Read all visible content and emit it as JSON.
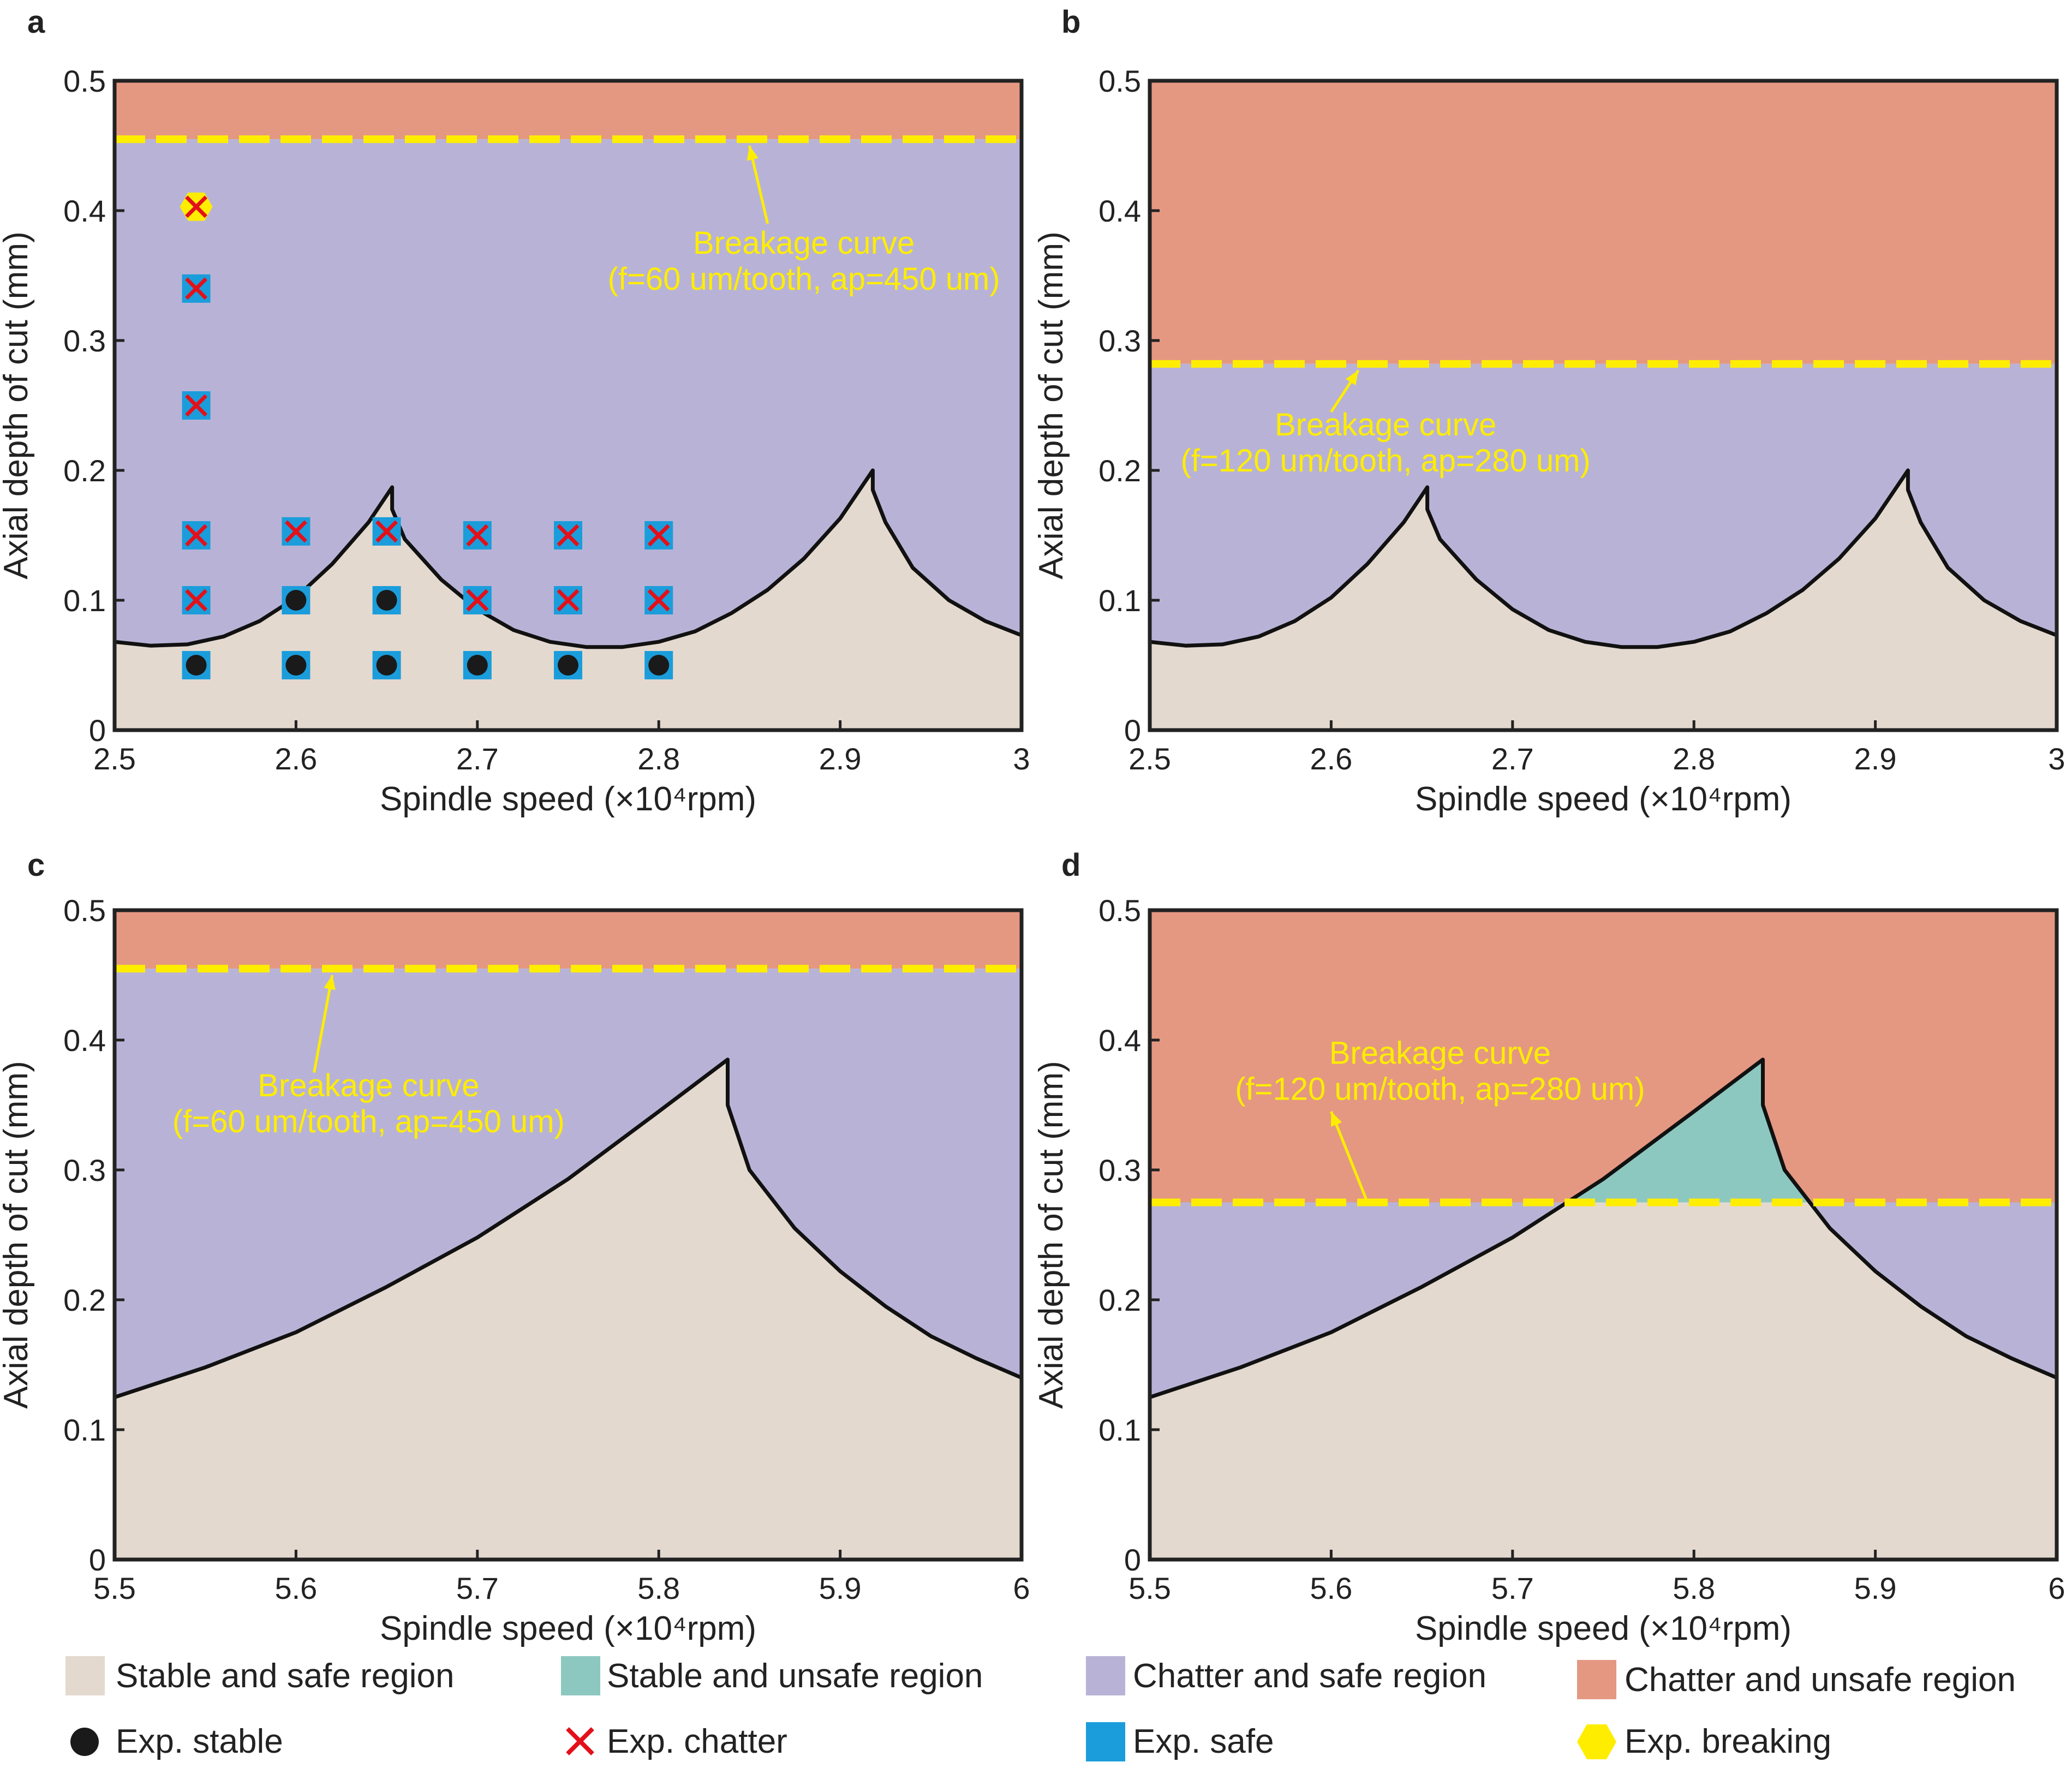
{
  "colors": {
    "stable_safe": "#E4D9CF",
    "stable_unsafe": "#8DC8C0",
    "chatter_safe": "#B8B3D6",
    "chatter_unsafe": "#E49882",
    "breakage": "#FFED00",
    "exp_safe": "#1B9DDB",
    "exp_chatter_x": "#E3101A",
    "exp_stable_dot": "#1a1a1a",
    "axis": "#222222"
  },
  "panels": [
    {
      "id": "a",
      "xlabel": "Spindle speed (×10⁴rpm)",
      "ylabel": "Axial depth of cut (mm)",
      "xlim": [
        2.5,
        3.0
      ],
      "ylim": [
        0,
        0.5
      ],
      "xticks": [
        2.5,
        2.6,
        2.7,
        2.8,
        2.9,
        3.0
      ],
      "xtick_labels": [
        "2.5",
        "2.6",
        "2.7",
        "2.8",
        "2.9",
        "3"
      ],
      "yticks": [
        0,
        0.1,
        0.2,
        0.3,
        0.4,
        0.5
      ],
      "ytick_labels": [
        "0",
        "0.1",
        "0.2",
        "0.3",
        "0.4",
        "0.5"
      ],
      "breakage_ap": 0.455,
      "breakage_text_line1": "Breakage curve",
      "breakage_text_line2": "(f=60 um/tooth, ap=450 um)",
      "breakage_text_at": [
        2.88,
        0.35
      ],
      "arrow_from": [
        2.86,
        0.39
      ],
      "arrow_to": [
        2.85,
        0.45
      ],
      "stability_lobes": [
        {
          "x": [
            2.5,
            2.52,
            2.54,
            2.56,
            2.58,
            2.6,
            2.62,
            2.64,
            2.653
          ],
          "y": [
            0.068,
            0.065,
            0.066,
            0.072,
            0.084,
            0.102,
            0.128,
            0.16,
            0.187
          ]
        },
        {
          "x": [
            2.653,
            2.66,
            2.68,
            2.7,
            2.72,
            2.74,
            2.76,
            2.78,
            2.8,
            2.82,
            2.84,
            2.86,
            2.88,
            2.9,
            2.918
          ],
          "y": [
            0.17,
            0.147,
            0.116,
            0.093,
            0.077,
            0.068,
            0.064,
            0.064,
            0.068,
            0.076,
            0.09,
            0.108,
            0.132,
            0.163,
            0.2
          ]
        },
        {
          "x": [
            2.918,
            2.925,
            2.94,
            2.96,
            2.98,
            3.0
          ],
          "y": [
            0.185,
            0.16,
            0.125,
            0.1,
            0.084,
            0.073
          ]
        }
      ],
      "experiments": {
        "safe": [
          [
            2.545,
            0.05
          ],
          [
            2.545,
            0.1
          ],
          [
            2.545,
            0.15
          ],
          [
            2.545,
            0.25
          ],
          [
            2.545,
            0.34
          ],
          [
            2.6,
            0.05
          ],
          [
            2.6,
            0.1
          ],
          [
            2.6,
            0.153
          ],
          [
            2.65,
            0.05
          ],
          [
            2.65,
            0.1
          ],
          [
            2.65,
            0.153
          ],
          [
            2.7,
            0.05
          ],
          [
            2.7,
            0.1
          ],
          [
            2.7,
            0.15
          ],
          [
            2.75,
            0.05
          ],
          [
            2.75,
            0.1
          ],
          [
            2.75,
            0.15
          ],
          [
            2.8,
            0.05
          ],
          [
            2.8,
            0.1
          ],
          [
            2.8,
            0.15
          ]
        ],
        "stable": [
          [
            2.545,
            0.05
          ],
          [
            2.6,
            0.05
          ],
          [
            2.6,
            0.1
          ],
          [
            2.65,
            0.05
          ],
          [
            2.65,
            0.1
          ],
          [
            2.7,
            0.05
          ],
          [
            2.75,
            0.05
          ],
          [
            2.8,
            0.05
          ]
        ],
        "chatter": [
          [
            2.545,
            0.1
          ],
          [
            2.545,
            0.15
          ],
          [
            2.545,
            0.25
          ],
          [
            2.545,
            0.34
          ],
          [
            2.545,
            0.403
          ],
          [
            2.6,
            0.153
          ],
          [
            2.65,
            0.153
          ],
          [
            2.7,
            0.1
          ],
          [
            2.7,
            0.15
          ],
          [
            2.75,
            0.1
          ],
          [
            2.75,
            0.15
          ],
          [
            2.8,
            0.1
          ],
          [
            2.8,
            0.15
          ]
        ],
        "breaking": [
          [
            2.545,
            0.403
          ]
        ]
      }
    },
    {
      "id": "b",
      "xlabel": "Spindle speed (×10⁴rpm)",
      "ylabel": "Axial depth of cut (mm)",
      "xlim": [
        2.5,
        3.0
      ],
      "ylim": [
        0,
        0.5
      ],
      "xticks": [
        2.5,
        2.6,
        2.7,
        2.8,
        2.9,
        3.0
      ],
      "xtick_labels": [
        "2.5",
        "2.6",
        "2.7",
        "2.8",
        "2.9",
        "3"
      ],
      "yticks": [
        0,
        0.1,
        0.2,
        0.3,
        0.4,
        0.5
      ],
      "ytick_labels": [
        "0",
        "0.1",
        "0.2",
        "0.3",
        "0.4",
        "0.5"
      ],
      "breakage_ap": 0.282,
      "breakage_text_line1": "Breakage curve",
      "breakage_text_line2": "(f=120 um/tooth, ap=280 um)",
      "breakage_text_at": [
        2.63,
        0.21
      ],
      "arrow_from": [
        2.6,
        0.245
      ],
      "arrow_to": [
        2.615,
        0.277
      ],
      "stability_lobes": [
        {
          "x": [
            2.5,
            2.52,
            2.54,
            2.56,
            2.58,
            2.6,
            2.62,
            2.64,
            2.653
          ],
          "y": [
            0.068,
            0.065,
            0.066,
            0.072,
            0.084,
            0.102,
            0.128,
            0.16,
            0.187
          ]
        },
        {
          "x": [
            2.653,
            2.66,
            2.68,
            2.7,
            2.72,
            2.74,
            2.76,
            2.78,
            2.8,
            2.82,
            2.84,
            2.86,
            2.88,
            2.9,
            2.918
          ],
          "y": [
            0.17,
            0.147,
            0.116,
            0.093,
            0.077,
            0.068,
            0.064,
            0.064,
            0.068,
            0.076,
            0.09,
            0.108,
            0.132,
            0.163,
            0.2
          ]
        },
        {
          "x": [
            2.918,
            2.925,
            2.94,
            2.96,
            2.98,
            3.0
          ],
          "y": [
            0.185,
            0.16,
            0.125,
            0.1,
            0.084,
            0.073
          ]
        }
      ]
    },
    {
      "id": "c",
      "xlabel": "Spindle speed (×10⁴rpm)",
      "ylabel": "Axial depth of cut (mm)",
      "xlim": [
        5.5,
        6.0
      ],
      "ylim": [
        0,
        0.5
      ],
      "xticks": [
        5.5,
        5.6,
        5.7,
        5.8,
        5.9,
        6.0
      ],
      "xtick_labels": [
        "5.5",
        "5.6",
        "5.7",
        "5.8",
        "5.9",
        "6"
      ],
      "yticks": [
        0,
        0.1,
        0.2,
        0.3,
        0.4,
        0.5
      ],
      "ytick_labels": [
        "0",
        "0.1",
        "0.2",
        "0.3",
        "0.4",
        "0.5"
      ],
      "breakage_ap": 0.455,
      "breakage_text_line1": "Breakage curve",
      "breakage_text_line2": "(f=60 um/tooth, ap=450 um)",
      "breakage_text_at": [
        5.64,
        0.34
      ],
      "arrow_from": [
        5.61,
        0.375
      ],
      "arrow_to": [
        5.62,
        0.45
      ],
      "stability_lobes": [
        {
          "x": [
            5.5,
            5.55,
            5.6,
            5.65,
            5.7,
            5.75,
            5.8,
            5.838
          ],
          "y": [
            0.125,
            0.148,
            0.175,
            0.21,
            0.248,
            0.293,
            0.345,
            0.385
          ]
        },
        {
          "x": [
            5.838,
            5.85,
            5.875,
            5.9,
            5.925,
            5.95,
            5.975,
            6.0
          ],
          "y": [
            0.35,
            0.3,
            0.255,
            0.222,
            0.195,
            0.172,
            0.155,
            0.14
          ]
        }
      ]
    },
    {
      "id": "d",
      "xlabel": "Spindle speed (×10⁴rpm)",
      "ylabel": "Axial depth of cut (mm)",
      "xlim": [
        5.5,
        6.0
      ],
      "ylim": [
        0,
        0.5
      ],
      "xticks": [
        5.5,
        5.6,
        5.7,
        5.8,
        5.9,
        6.0
      ],
      "xtick_labels": [
        "5.5",
        "5.6",
        "5.7",
        "5.8",
        "5.9",
        "6"
      ],
      "yticks": [
        0,
        0.1,
        0.2,
        0.3,
        0.4,
        0.5
      ],
      "ytick_labels": [
        "0",
        "0.1",
        "0.2",
        "0.3",
        "0.4",
        "0.5"
      ],
      "breakage_ap": 0.275,
      "breakage_text_line1": "Breakage curve",
      "breakage_text_line2": "(f=120 um/tooth, ap=280 um)",
      "breakage_text_at": [
        5.66,
        0.365
      ],
      "arrow_from": [
        5.62,
        0.275
      ],
      "arrow_to": [
        5.6,
        0.345
      ],
      "stable_unsafe_region": true,
      "stability_lobes": [
        {
          "x": [
            5.5,
            5.55,
            5.6,
            5.65,
            5.7,
            5.75,
            5.8,
            5.838
          ],
          "y": [
            0.125,
            0.148,
            0.175,
            0.21,
            0.248,
            0.293,
            0.345,
            0.385
          ]
        },
        {
          "x": [
            5.838,
            5.85,
            5.875,
            5.9,
            5.925,
            5.95,
            5.975,
            6.0
          ],
          "y": [
            0.35,
            0.3,
            0.255,
            0.222,
            0.195,
            0.172,
            0.155,
            0.14
          ]
        }
      ]
    }
  ],
  "legend": {
    "stable_safe": "Stable and safe region",
    "stable_unsafe": "Stable and unsafe region",
    "chatter_safe": "Chatter and safe region",
    "chatter_unsafe": "Chatter and unsafe region",
    "exp_stable": "Exp. stable",
    "exp_chatter": "Exp. chatter",
    "exp_safe": "Exp. safe",
    "exp_breaking": "Exp. breaking"
  }
}
